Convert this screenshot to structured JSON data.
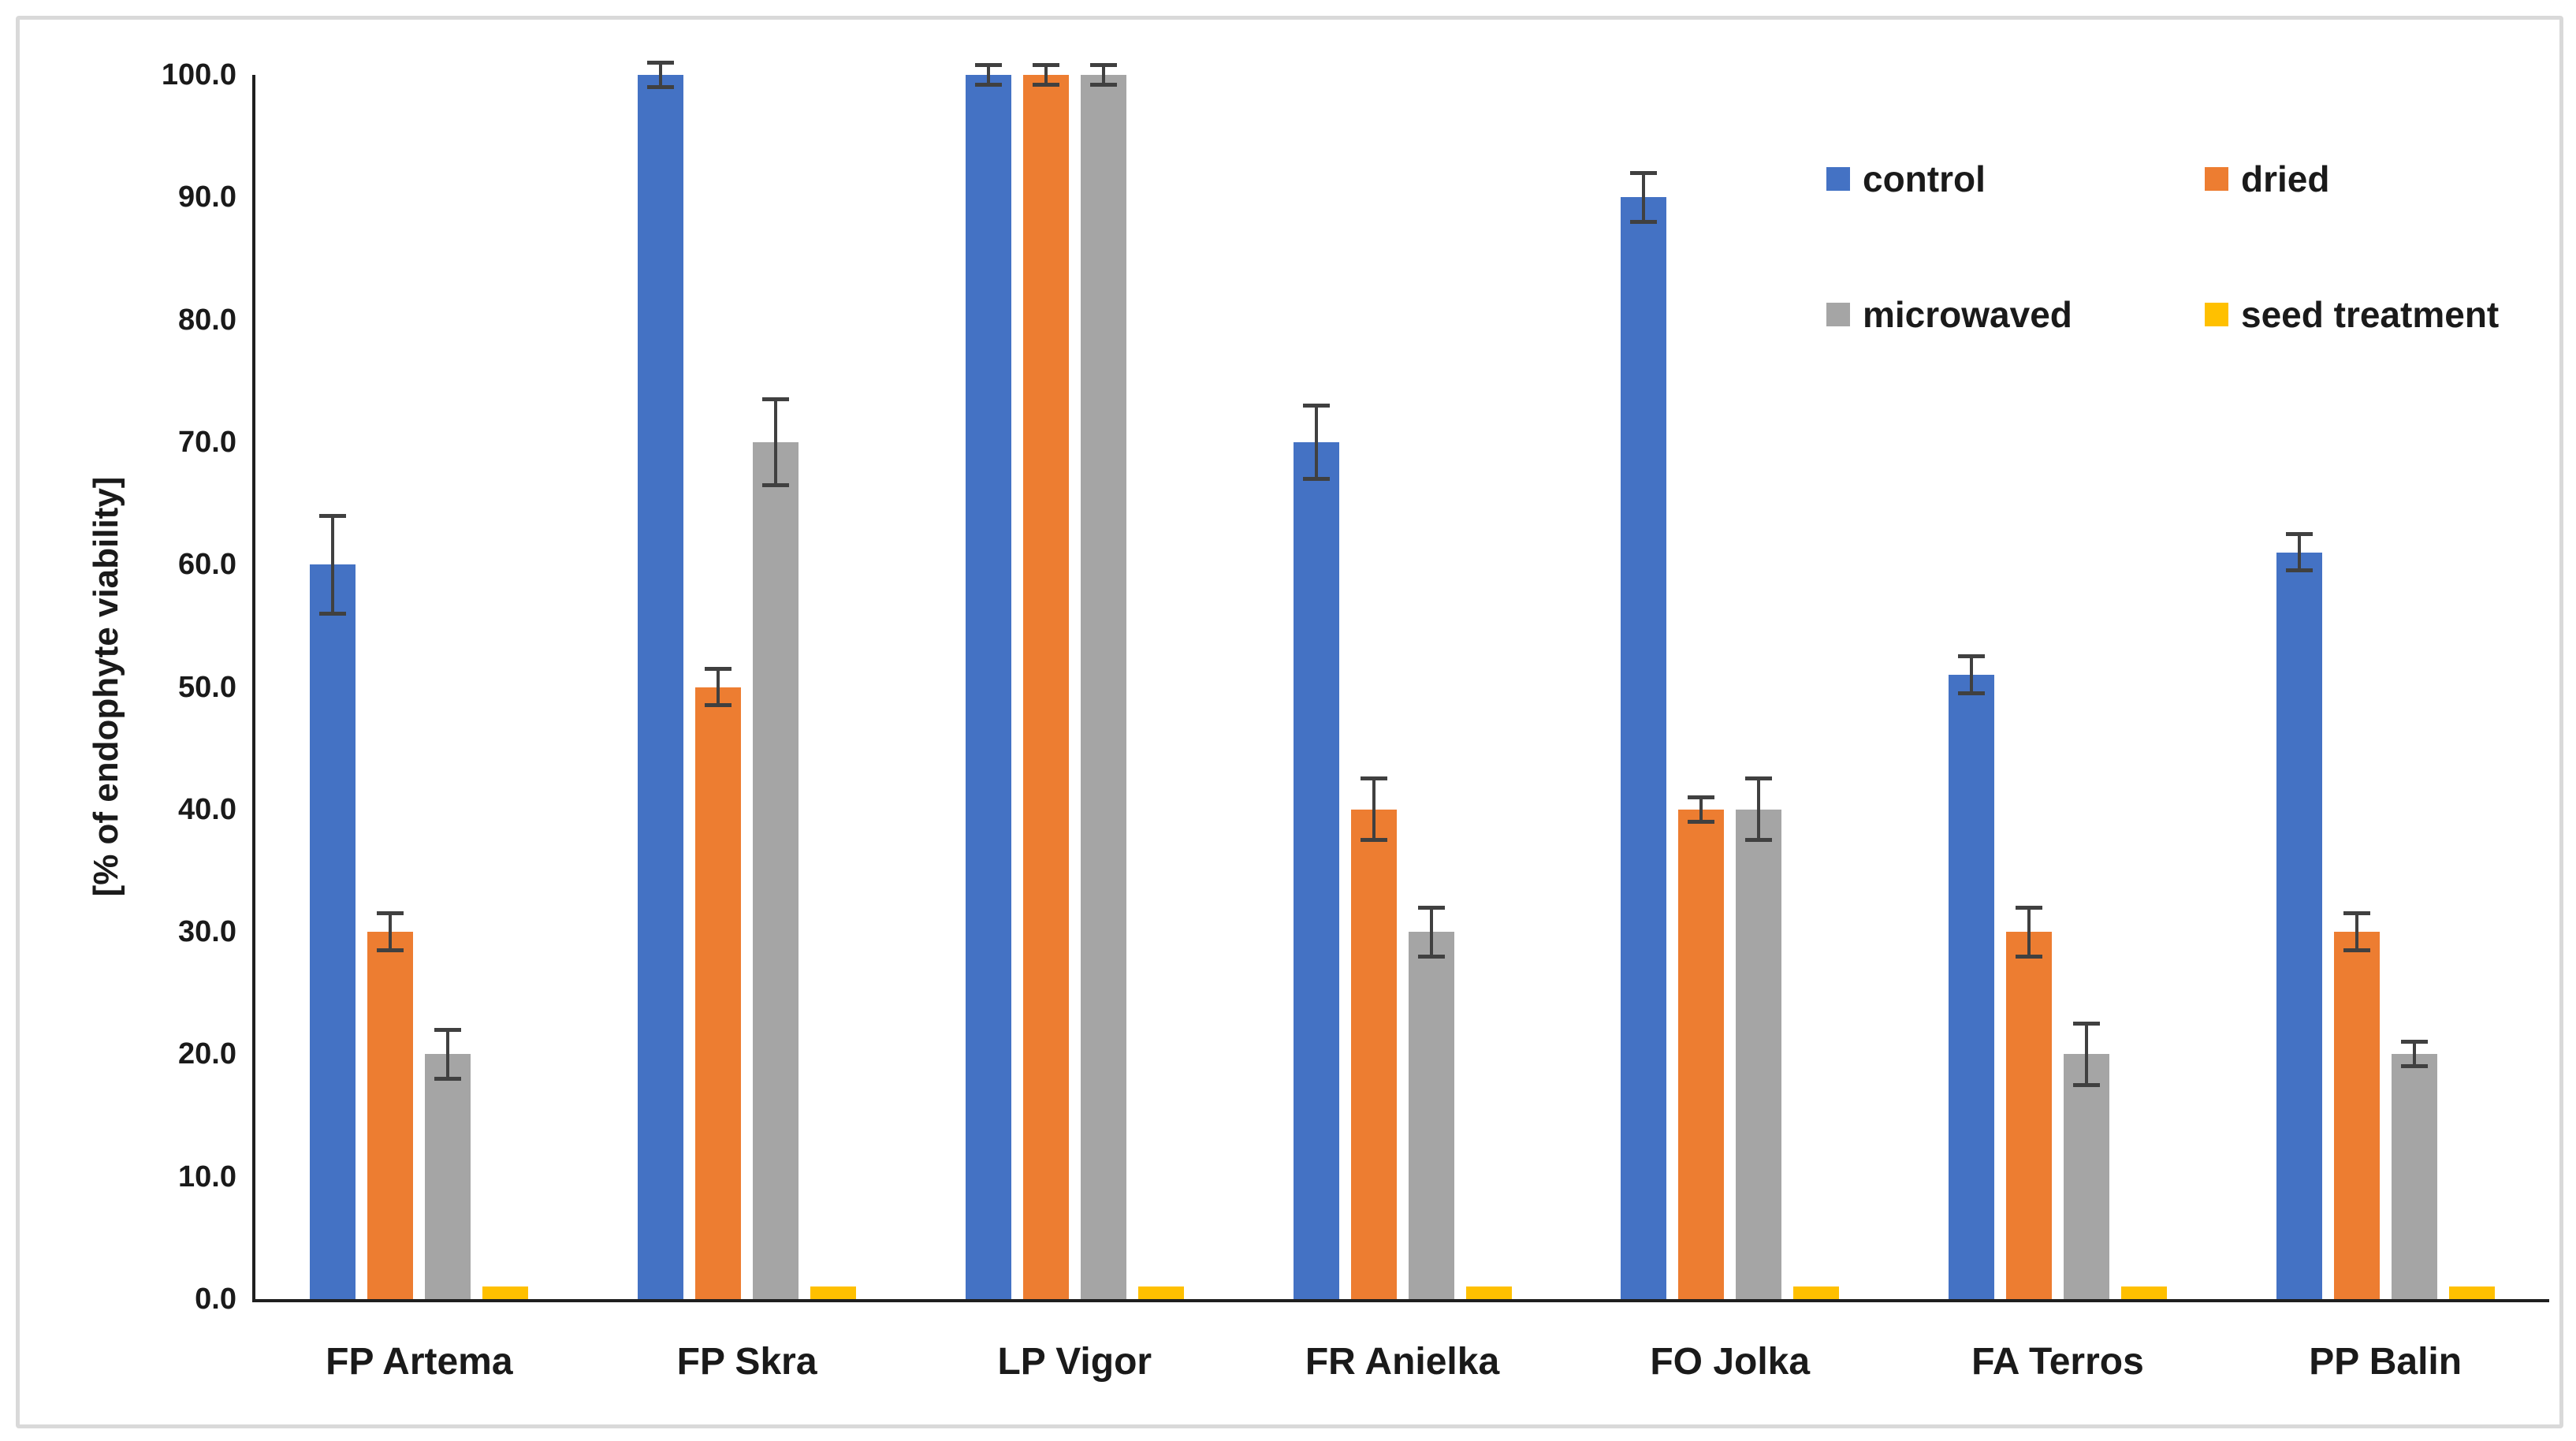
{
  "figure": {
    "background": "#ffffff",
    "border_color": "#d9d9d9"
  },
  "chart_data": {
    "type": "bar",
    "title": "",
    "xlabel": "",
    "ylabel": "[% of endophyte viability]",
    "ylim": [
      0,
      100
    ],
    "y_tick_step": 10,
    "y_ticks": [
      "0.0",
      "10.0",
      "20.0",
      "30.0",
      "40.0",
      "50.0",
      "60.0",
      "70.0",
      "80.0",
      "90.0",
      "100.0"
    ],
    "grid": false,
    "legend_position": "top-right",
    "categories": [
      "FP Artema",
      "FP Skra",
      "LP Vigor",
      "FR Anielka",
      "FO Jolka",
      "FA Terros",
      "PP Balin"
    ],
    "series": [
      {
        "name": "control",
        "color": "#4472C4",
        "values": [
          60,
          100,
          100,
          70,
          90,
          51,
          61
        ],
        "errors": [
          4.0,
          1.0,
          0.8,
          3.0,
          2.0,
          1.5,
          1.5
        ]
      },
      {
        "name": "dried",
        "color": "#ED7D31",
        "values": [
          30,
          50,
          100,
          40,
          40,
          30,
          30
        ],
        "errors": [
          1.5,
          1.5,
          0.8,
          2.5,
          1.0,
          2.0,
          1.5
        ]
      },
      {
        "name": "microwaved",
        "color": "#A5A5A5",
        "values": [
          20,
          70,
          100,
          30,
          40,
          20,
          20
        ],
        "errors": [
          2.0,
          3.5,
          0.8,
          2.0,
          2.5,
          2.5,
          1.0
        ]
      },
      {
        "name": "seed treatment",
        "color": "#FFC000",
        "values": [
          1,
          1,
          1,
          1,
          1,
          1,
          1
        ],
        "errors": [
          0,
          0,
          0,
          0,
          0,
          0,
          0
        ]
      }
    ],
    "error_bar_color": "#404040",
    "axis_color": "#1f1f1f"
  }
}
